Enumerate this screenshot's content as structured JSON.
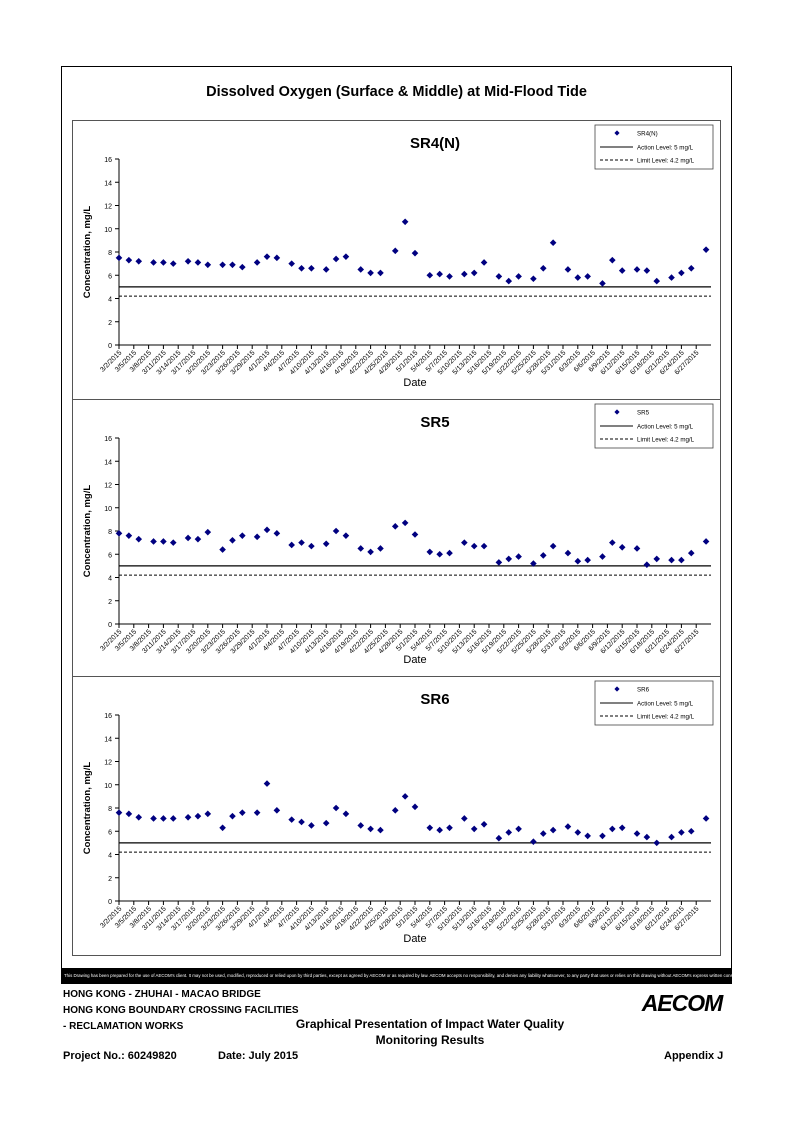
{
  "page": {
    "main_title": "Dissolved Oxygen (Surface & Middle) at Mid-Flood Tide",
    "disclaimer": "This Drawing has been prepared for the use of AECOM's client. It may not be used, modified, reproduced or relied upon by third parties, except as agreed by AECOM or as required by law. AECOM accepts no responsibility, and denies any liability whatsoever, to any party that uses or relies on this drawing without AECOM's express written consent.",
    "footer": {
      "line1": "HONG KONG - ZHUHAI - MACAO BRIDGE",
      "line2": "HONG KONG BOUNDARY CROSSING FACILITIES",
      "line3": "- RECLAMATION WORKS",
      "caption1": "Graphical Presentation of Impact Water Quality",
      "caption2": "Monitoring Results",
      "project": "Project No.: 60249820",
      "date": "Date: July 2015",
      "appendix": "Appendix J",
      "logo": "AECOM"
    }
  },
  "chart_data": [
    {
      "type": "scatter",
      "title": "SR4(N)",
      "xlabel": "Date",
      "ylabel": "Concentration, mg/L",
      "ylim": [
        0,
        16
      ],
      "yticks": [
        0,
        2,
        4,
        6,
        8,
        10,
        12,
        14,
        16
      ],
      "x_tick_labels": [
        "3/2/2015",
        "3/5/2015",
        "3/8/2015",
        "3/11/2015",
        "3/14/2015",
        "3/17/2015",
        "3/20/2015",
        "3/23/2015",
        "3/26/2015",
        "3/29/2015",
        "4/1/2015",
        "4/4/2015",
        "4/7/2015",
        "4/10/2015",
        "4/13/2015",
        "4/16/2015",
        "4/19/2015",
        "4/22/2015",
        "4/25/2015",
        "4/28/2015",
        "5/1/2015",
        "5/4/2015",
        "5/7/2015",
        "5/10/2015",
        "5/13/2015",
        "5/16/2015",
        "5/19/2015",
        "5/22/2015",
        "5/25/2015",
        "5/28/2015",
        "5/31/2015",
        "6/3/2015",
        "6/6/2015",
        "6/9/2015",
        "6/12/2015",
        "6/15/2015",
        "6/18/2015",
        "6/21/2015",
        "6/24/2015",
        "6/27/2015"
      ],
      "x_range_days": [
        0,
        120
      ],
      "legend_position": "top-right",
      "series": [
        {
          "name": "SR4(N)",
          "marker": "diamond",
          "color": "#000080",
          "x": [
            0,
            2,
            4,
            7,
            9,
            11,
            14,
            16,
            18,
            21,
            23,
            25,
            28,
            30,
            32,
            35,
            37,
            39,
            42,
            44,
            46,
            49,
            51,
            53,
            56,
            58,
            60,
            63,
            65,
            67,
            70,
            72,
            74,
            77,
            79,
            81,
            84,
            86,
            88,
            91,
            93,
            95,
            98,
            100,
            102,
            105,
            107,
            109,
            112,
            114,
            116,
            119
          ],
          "y": [
            7.5,
            7.3,
            7.2,
            7.1,
            7.1,
            7.0,
            7.2,
            7.1,
            6.9,
            6.9,
            6.9,
            6.7,
            7.1,
            7.6,
            7.5,
            7.0,
            6.6,
            6.6,
            6.5,
            7.4,
            7.6,
            6.5,
            6.2,
            6.2,
            8.1,
            10.6,
            7.9,
            6.0,
            6.1,
            5.9,
            6.1,
            6.2,
            7.1,
            5.9,
            5.5,
            5.9,
            5.7,
            6.6,
            8.8,
            6.5,
            5.8,
            5.9,
            5.3,
            7.3,
            6.4,
            6.5,
            6.4,
            5.5,
            5.8,
            6.2,
            6.6,
            8.2
          ]
        },
        {
          "name": "Action Level: 5 mg/L",
          "style": "solid",
          "value": 5
        },
        {
          "name": "Limit Level: 4.2 mg/L",
          "style": "dashed",
          "value": 4.2
        }
      ]
    },
    {
      "type": "scatter",
      "title": "SR5",
      "xlabel": "Date",
      "ylabel": "Concentration, mg/L",
      "ylim": [
        0,
        16
      ],
      "yticks": [
        0,
        2,
        4,
        6,
        8,
        10,
        12,
        14,
        16
      ],
      "x_tick_labels": [
        "3/2/2015",
        "3/5/2015",
        "3/8/2015",
        "3/11/2015",
        "3/14/2015",
        "3/17/2015",
        "3/20/2015",
        "3/23/2015",
        "3/26/2015",
        "3/29/2015",
        "4/1/2015",
        "4/4/2015",
        "4/7/2015",
        "4/10/2015",
        "4/13/2015",
        "4/16/2015",
        "4/19/2015",
        "4/22/2015",
        "4/25/2015",
        "4/28/2015",
        "5/1/2015",
        "5/4/2015",
        "5/7/2015",
        "5/10/2015",
        "5/13/2015",
        "5/16/2015",
        "5/19/2015",
        "5/22/2015",
        "5/25/2015",
        "5/28/2015",
        "5/31/2015",
        "6/3/2015",
        "6/6/2015",
        "6/9/2015",
        "6/12/2015",
        "6/15/2015",
        "6/18/2015",
        "6/21/2015",
        "6/24/2015",
        "6/27/2015"
      ],
      "x_range_days": [
        0,
        120
      ],
      "legend_position": "top-right",
      "series": [
        {
          "name": "SR5",
          "marker": "diamond",
          "color": "#000080",
          "x": [
            0,
            2,
            4,
            7,
            9,
            11,
            14,
            16,
            18,
            21,
            23,
            25,
            28,
            30,
            32,
            35,
            37,
            39,
            42,
            44,
            46,
            49,
            51,
            53,
            56,
            58,
            60,
            63,
            65,
            67,
            70,
            72,
            74,
            77,
            79,
            81,
            84,
            86,
            88,
            91,
            93,
            95,
            98,
            100,
            102,
            105,
            107,
            109,
            112,
            114,
            116,
            119
          ],
          "y": [
            7.8,
            7.6,
            7.3,
            7.1,
            7.1,
            7.0,
            7.4,
            7.3,
            7.9,
            6.4,
            7.2,
            7.6,
            7.5,
            8.1,
            7.8,
            6.8,
            7.0,
            6.7,
            6.9,
            8.0,
            7.6,
            6.5,
            6.2,
            6.5,
            8.4,
            8.7,
            7.7,
            6.2,
            6.0,
            6.1,
            7.0,
            6.7,
            6.7,
            5.3,
            5.6,
            5.8,
            5.2,
            5.9,
            6.7,
            6.1,
            5.4,
            5.5,
            5.8,
            7.0,
            6.6,
            6.5,
            5.1,
            5.6,
            5.5,
            5.5,
            6.1,
            7.1
          ]
        },
        {
          "name": "Action Level: 5 mg/L",
          "style": "solid",
          "value": 5
        },
        {
          "name": "Limit Level: 4.2 mg/L",
          "style": "dashed",
          "value": 4.2
        }
      ]
    },
    {
      "type": "scatter",
      "title": "SR6",
      "xlabel": "Date",
      "ylabel": "Concentration, mg/L",
      "ylim": [
        0,
        16
      ],
      "yticks": [
        0,
        2,
        4,
        6,
        8,
        10,
        12,
        14,
        16
      ],
      "x_tick_labels": [
        "3/2/2015",
        "3/5/2015",
        "3/8/2015",
        "3/11/2015",
        "3/14/2015",
        "3/17/2015",
        "3/20/2015",
        "3/23/2015",
        "3/26/2015",
        "3/29/2015",
        "4/1/2015",
        "4/4/2015",
        "4/7/2015",
        "4/10/2015",
        "4/13/2015",
        "4/16/2015",
        "4/19/2015",
        "4/22/2015",
        "4/25/2015",
        "4/28/2015",
        "5/1/2015",
        "5/4/2015",
        "5/7/2015",
        "5/10/2015",
        "5/13/2015",
        "5/16/2015",
        "5/19/2015",
        "5/22/2015",
        "5/25/2015",
        "5/28/2015",
        "5/31/2015",
        "6/3/2015",
        "6/6/2015",
        "6/9/2015",
        "6/12/2015",
        "6/15/2015",
        "6/18/2015",
        "6/21/2015",
        "6/24/2015",
        "6/27/2015"
      ],
      "x_range_days": [
        0,
        120
      ],
      "legend_position": "top-right",
      "series": [
        {
          "name": "SR6",
          "marker": "diamond",
          "color": "#000080",
          "x": [
            0,
            2,
            4,
            7,
            9,
            11,
            14,
            16,
            18,
            21,
            23,
            25,
            28,
            30,
            32,
            35,
            37,
            39,
            42,
            44,
            46,
            49,
            51,
            53,
            56,
            58,
            60,
            63,
            65,
            67,
            70,
            72,
            74,
            77,
            79,
            81,
            84,
            86,
            88,
            91,
            93,
            95,
            98,
            100,
            102,
            105,
            107,
            109,
            112,
            114,
            116,
            119
          ],
          "y": [
            7.6,
            7.5,
            7.2,
            7.1,
            7.1,
            7.1,
            7.2,
            7.3,
            7.5,
            6.3,
            7.3,
            7.6,
            7.6,
            10.1,
            7.8,
            7.0,
            6.8,
            6.5,
            6.7,
            8.0,
            7.5,
            6.5,
            6.2,
            6.1,
            7.8,
            9.0,
            8.1,
            6.3,
            6.1,
            6.3,
            7.1,
            6.2,
            6.6,
            5.4,
            5.9,
            6.2,
            5.1,
            5.8,
            6.1,
            6.4,
            5.9,
            5.6,
            5.6,
            6.2,
            6.3,
            5.8,
            5.5,
            5.0,
            5.5,
            5.9,
            6.0,
            7.1
          ]
        },
        {
          "name": "Action Level: 5 mg/L",
          "style": "solid",
          "value": 5
        },
        {
          "name": "Limit Level: 4.2 mg/L",
          "style": "dashed",
          "value": 4.2
        }
      ]
    }
  ]
}
